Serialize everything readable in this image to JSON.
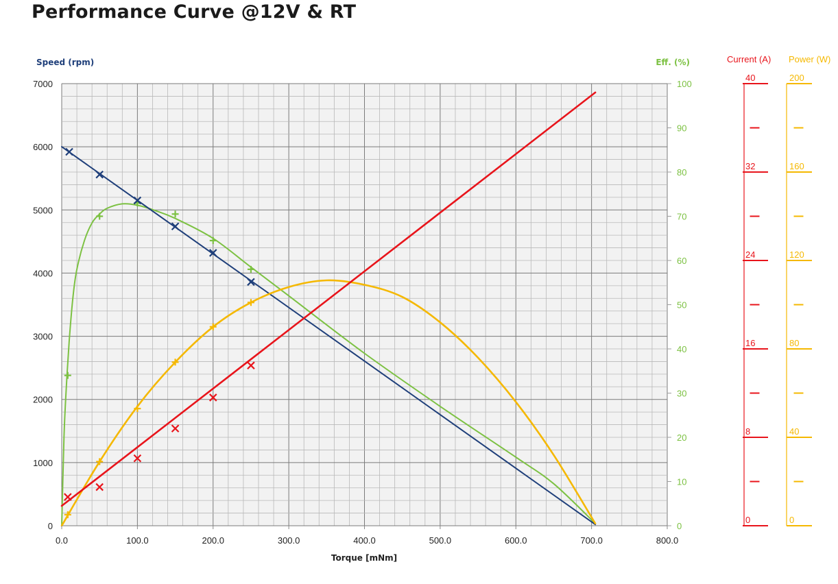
{
  "title": "Performance Curve @12V & RT",
  "chart_data": {
    "type": "line",
    "xlabel": "Torque [mNm]",
    "xlim": [
      0,
      800
    ],
    "x_ticks": [
      "0.0",
      "100.0",
      "200.0",
      "300.0",
      "400.0",
      "500.0",
      "600.0",
      "700.0",
      "800.0"
    ],
    "y_left": {
      "label": "Speed (rpm)",
      "lim": [
        0,
        7000
      ],
      "ticks": [
        "0",
        "1000",
        "2000",
        "3000",
        "4000",
        "5000",
        "6000",
        "7000"
      ],
      "color": "#1f3f7a"
    },
    "y_right": {
      "label": "Eff. (%)",
      "lim": [
        0,
        100
      ],
      "ticks": [
        "0",
        "10",
        "20",
        "30",
        "40",
        "50",
        "60",
        "70",
        "80",
        "90",
        "100"
      ],
      "color": "#7cc142"
    },
    "current_axis": {
      "label": "Current (A)",
      "lim": [
        0,
        40
      ],
      "labeled_ticks": [
        "0",
        "8",
        "16",
        "24",
        "32",
        "40"
      ],
      "color": "#e8141b"
    },
    "power_axis": {
      "label": "Power (W)",
      "lim": [
        0,
        200
      ],
      "labeled_ticks": [
        "0",
        "40",
        "80",
        "120",
        "160",
        "200"
      ],
      "color": "#f5b800"
    },
    "grid": true,
    "series": [
      {
        "name": "Speed (rpm)",
        "axis": "speed",
        "color": "#1f3f7a",
        "marker": "x",
        "curve": [
          [
            0,
            6000
          ],
          [
            705,
            20
          ]
        ],
        "markers": [
          [
            10,
            5920
          ],
          [
            50,
            5560
          ],
          [
            100,
            5150
          ],
          [
            150,
            4740
          ],
          [
            200,
            4320
          ],
          [
            250,
            3860
          ]
        ]
      },
      {
        "name": "Eff. (%)",
        "axis": "eff",
        "color": "#7cc142",
        "marker": "+",
        "curve": [
          [
            0,
            0
          ],
          [
            3,
            20
          ],
          [
            6,
            31
          ],
          [
            10,
            42
          ],
          [
            15,
            52
          ],
          [
            20,
            58
          ],
          [
            30,
            64.5
          ],
          [
            40,
            68.5
          ],
          [
            50,
            70.5
          ],
          [
            60,
            71.8
          ],
          [
            80,
            72.8
          ],
          [
            100,
            72.5
          ],
          [
            125,
            71.2
          ],
          [
            150,
            69.5
          ],
          [
            200,
            65
          ],
          [
            250,
            58.5
          ],
          [
            300,
            52
          ],
          [
            400,
            39
          ],
          [
            500,
            27
          ],
          [
            600,
            15.5
          ],
          [
            650,
            9.5
          ],
          [
            705,
            0.5
          ]
        ],
        "markers": [
          [
            8,
            34
          ],
          [
            50,
            70
          ],
          [
            100,
            73
          ],
          [
            150,
            70.5
          ],
          [
            200,
            64.5
          ],
          [
            250,
            58
          ]
        ]
      },
      {
        "name": "Current (A)",
        "axis": "current",
        "color": "#e8141b",
        "marker": "x",
        "curve": [
          [
            0,
            1.8
          ],
          [
            705,
            39.2
          ]
        ],
        "markers": [
          [
            8,
            2.6
          ],
          [
            50,
            3.5
          ],
          [
            100,
            6.1
          ],
          [
            150,
            8.8
          ],
          [
            200,
            11.6
          ],
          [
            250,
            14.5
          ]
        ]
      },
      {
        "name": "Power (W)",
        "axis": "power",
        "color": "#f5b800",
        "marker": "+",
        "curve": [
          [
            0,
            0
          ],
          [
            50,
            29
          ],
          [
            100,
            54
          ],
          [
            150,
            74
          ],
          [
            200,
            90
          ],
          [
            250,
            101
          ],
          [
            300,
            108
          ],
          [
            350,
            111
          ],
          [
            400,
            109
          ],
          [
            450,
            103.5
          ],
          [
            500,
            92
          ],
          [
            550,
            76
          ],
          [
            600,
            56
          ],
          [
            650,
            32
          ],
          [
            705,
            1
          ]
        ],
        "markers": [
          [
            8,
            5
          ],
          [
            50,
            29
          ],
          [
            100,
            53
          ],
          [
            150,
            74
          ],
          [
            200,
            90
          ],
          [
            250,
            101
          ]
        ]
      }
    ]
  }
}
